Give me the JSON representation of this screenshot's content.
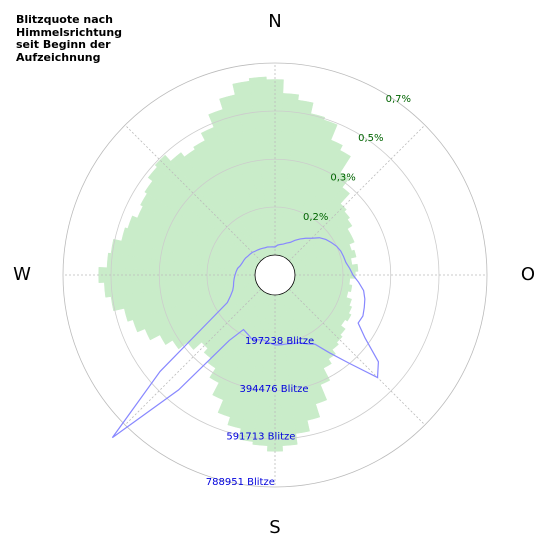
{
  "chart_data": {
    "type": "polar",
    "title": "Blitzquote nach Himmelsrichtung seit Beginn der Aufzeichnung",
    "direction_labels": [
      "N",
      "O",
      "S",
      "W"
    ],
    "x": [
      0,
      5,
      10,
      15,
      20,
      25,
      30,
      35,
      40,
      45,
      50,
      55,
      60,
      65,
      70,
      75,
      80,
      85,
      90,
      95,
      100,
      105,
      110,
      115,
      120,
      125,
      130,
      135,
      140,
      145,
      150,
      155,
      160,
      165,
      170,
      175,
      180,
      185,
      190,
      195,
      200,
      205,
      210,
      215,
      220,
      225,
      230,
      235,
      240,
      245,
      250,
      255,
      260,
      265,
      270,
      275,
      280,
      285,
      290,
      295,
      300,
      305,
      310,
      315,
      320,
      325,
      330,
      335,
      340,
      345,
      350,
      355
    ],
    "ylim": [
      0,
      0.7
    ],
    "yticks": [
      {
        "value": 0.175,
        "label": "0,2%"
      },
      {
        "value": 0.349,
        "label": "0,3%"
      },
      {
        "value": 0.525,
        "label": "0,5%"
      },
      {
        "value": 0.7,
        "label": "0,7%"
      }
    ],
    "y2lim": [
      0,
      788951
    ],
    "y2ticks": [
      {
        "value": 197238,
        "label": "197238 Blitze"
      },
      {
        "value": 394476,
        "label": "394476 Blitze"
      },
      {
        "value": 591713,
        "label": "591713 Blitze"
      },
      {
        "value": 788951,
        "label": "788951 Blitze"
      }
    ],
    "grid": true,
    "series": [
      {
        "type": "bar",
        "color": "#c9ecc9",
        "values": [
          0.64,
          0.59,
          0.57,
          0.53,
          0.52,
          0.46,
          0.44,
          0.37,
          0.33,
          0.28,
          0.27,
          0.26,
          0.24,
          0.24,
          0.22,
          0.23,
          0.21,
          0.23,
          0.22,
          0.2,
          0.21,
          0.2,
          0.22,
          0.23,
          0.24,
          0.23,
          0.25,
          0.26,
          0.27,
          0.29,
          0.31,
          0.36,
          0.42,
          0.47,
          0.51,
          0.55,
          0.57,
          0.55,
          0.54,
          0.5,
          0.47,
          0.42,
          0.37,
          0.33,
          0.31,
          0.29,
          0.33,
          0.37,
          0.4,
          0.44,
          0.47,
          0.49,
          0.53,
          0.55,
          0.57,
          0.54,
          0.53,
          0.5,
          0.49,
          0.47,
          0.48,
          0.49,
          0.51,
          0.52,
          0.49,
          0.47,
          0.48,
          0.51,
          0.56,
          0.6,
          0.64,
          0.65
        ]
      },
      {
        "type": "line",
        "axis": "y2",
        "color": "#8888ff",
        "values": [
          32900,
          41100,
          45200,
          49300,
          57500,
          65700,
          82200,
          98600,
          115000,
          131500,
          156100,
          172600,
          184900,
          197200,
          205500,
          209600,
          213700,
          226000,
          238300,
          262900,
          287600,
          300000,
          308200,
          316400,
          312300,
          369800,
          472500,
          513600,
          390400,
          308200,
          246500,
          230100,
          213700,
          209600,
          205500,
          205500,
          205500,
          197200,
          189000,
          193100,
          197200,
          184900,
          176700,
          246500,
          534200,
          862900,
          534200,
          246500,
          143800,
          119200,
          102700,
          94500,
          90400,
          86300,
          82200,
          78100,
          74000,
          65700,
          61600,
          59600,
          57500,
          53400,
          51400,
          49300,
          45200,
          43100,
          41100,
          39000,
          37000,
          37000,
          35000,
          33900
        ]
      }
    ]
  }
}
